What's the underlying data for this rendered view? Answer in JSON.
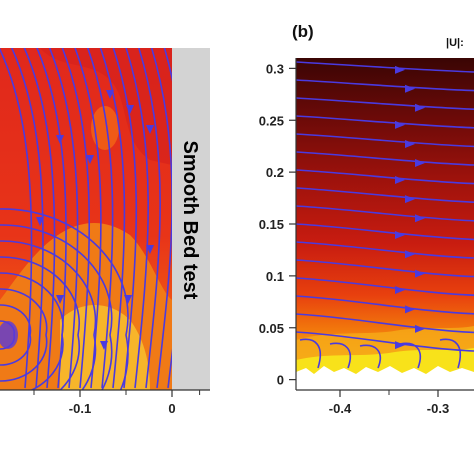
{
  "chart_data": [
    {
      "type": "heatmap",
      "panel_label": "",
      "side_text": "Smooth Bed test",
      "xticks": [
        -0.1,
        0
      ],
      "xtick_labels": [
        "-0.1",
        "0"
      ],
      "overlay": "streamlines",
      "colors": {
        "streamline": "#4a3ae0",
        "field_high": "#d8241f",
        "field_mid": "#f04a14",
        "field_low": "#f7b52a",
        "wall": "#d3d3d3"
      }
    },
    {
      "type": "heatmap",
      "panel_label": "(b)",
      "colorbar_label": "|U|:",
      "yticks": [
        0,
        0.05,
        0.1,
        0.15,
        0.2,
        0.25,
        0.3
      ],
      "ytick_labels": [
        "0",
        "0.05",
        "0.1",
        "0.15",
        "0.2",
        "0.25",
        "0.3"
      ],
      "ylim": [
        -0.01,
        0.31
      ],
      "xticks": [
        -0.4,
        -0.3
      ],
      "xtick_labels": [
        "-0.4",
        "-0.3"
      ],
      "overlay": "streamlines",
      "colors": {
        "streamline": "#4a3ae0",
        "field_top": "#3a0504",
        "field_mid": "#c01a10",
        "field_low": "#f26a0e",
        "field_bed": "#f8e21a"
      }
    }
  ]
}
